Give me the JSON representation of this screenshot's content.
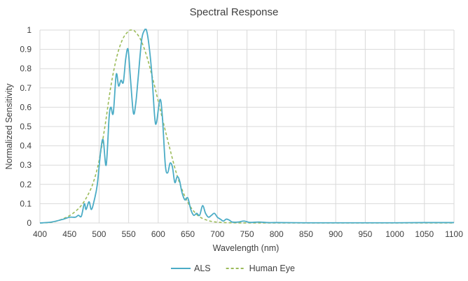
{
  "chart_data": {
    "type": "line",
    "title": "Spectral Response",
    "xlabel": "Wavelength (nm)",
    "ylabel": "Normalized Sensitivity",
    "xlim": [
      400,
      1100
    ],
    "ylim": [
      0,
      1
    ],
    "x_ticks": [
      400,
      450,
      500,
      550,
      600,
      650,
      700,
      750,
      800,
      850,
      900,
      950,
      1000,
      1050,
      1100
    ],
    "y_ticks": [
      0,
      0.1,
      0.2,
      0.3,
      0.4,
      0.5,
      0.6,
      0.7,
      0.8,
      0.9,
      1
    ],
    "grid": true,
    "legend_position": "bottom",
    "series": [
      {
        "name": "ALS",
        "color": "#4bacc6",
        "style": "solid",
        "points": [
          [
            400,
            0.0
          ],
          [
            420,
            0.005
          ],
          [
            440,
            0.02
          ],
          [
            450,
            0.03
          ],
          [
            460,
            0.03
          ],
          [
            465,
            0.04
          ],
          [
            470,
            0.035
          ],
          [
            475,
            0.1
          ],
          [
            478,
            0.07
          ],
          [
            483,
            0.11
          ],
          [
            487,
            0.07
          ],
          [
            492,
            0.12
          ],
          [
            497,
            0.2
          ],
          [
            503,
            0.38
          ],
          [
            507,
            0.43
          ],
          [
            512,
            0.3
          ],
          [
            517,
            0.55
          ],
          [
            520,
            0.6
          ],
          [
            524,
            0.57
          ],
          [
            529,
            0.77
          ],
          [
            533,
            0.71
          ],
          [
            537,
            0.74
          ],
          [
            541,
            0.73
          ],
          [
            545,
            0.85
          ],
          [
            549,
            0.9
          ],
          [
            553,
            0.75
          ],
          [
            558,
            0.57
          ],
          [
            562,
            0.62
          ],
          [
            566,
            0.75
          ],
          [
            572,
            0.95
          ],
          [
            577,
            1.0
          ],
          [
            580,
            1.0
          ],
          [
            584,
            0.93
          ],
          [
            589,
            0.78
          ],
          [
            594,
            0.55
          ],
          [
            597,
            0.52
          ],
          [
            603,
            0.64
          ],
          [
            607,
            0.55
          ],
          [
            612,
            0.3
          ],
          [
            616,
            0.26
          ],
          [
            620,
            0.31
          ],
          [
            624,
            0.29
          ],
          [
            628,
            0.21
          ],
          [
            632,
            0.24
          ],
          [
            636,
            0.22
          ],
          [
            640,
            0.16
          ],
          [
            645,
            0.12
          ],
          [
            650,
            0.13
          ],
          [
            655,
            0.07
          ],
          [
            660,
            0.04
          ],
          [
            665,
            0.05
          ],
          [
            670,
            0.04
          ],
          [
            675,
            0.09
          ],
          [
            680,
            0.05
          ],
          [
            685,
            0.03
          ],
          [
            690,
            0.04
          ],
          [
            695,
            0.05
          ],
          [
            700,
            0.03
          ],
          [
            705,
            0.02
          ],
          [
            710,
            0.01
          ],
          [
            715,
            0.02
          ],
          [
            720,
            0.015
          ],
          [
            725,
            0.005
          ],
          [
            735,
            0.005
          ],
          [
            745,
            0.01
          ],
          [
            755,
            0.003
          ],
          [
            770,
            0.005
          ],
          [
            785,
            0.002
          ],
          [
            800,
            0.002
          ],
          [
            850,
            0.001
          ],
          [
            900,
            0.001
          ],
          [
            950,
            0.001
          ],
          [
            1000,
            0.001
          ],
          [
            1050,
            0.002
          ],
          [
            1100,
            0.002
          ]
        ]
      },
      {
        "name": "Human Eye",
        "color": "#9bbb59",
        "style": "dashed",
        "points": [
          [
            400,
            0.0004
          ],
          [
            410,
            0.0012
          ],
          [
            420,
            0.004
          ],
          [
            430,
            0.0116
          ],
          [
            440,
            0.023
          ],
          [
            450,
            0.038
          ],
          [
            460,
            0.06
          ],
          [
            470,
            0.091
          ],
          [
            480,
            0.139
          ],
          [
            490,
            0.208
          ],
          [
            500,
            0.323
          ],
          [
            510,
            0.503
          ],
          [
            520,
            0.71
          ],
          [
            530,
            0.862
          ],
          [
            540,
            0.954
          ],
          [
            550,
            0.995
          ],
          [
            555,
            1.0
          ],
          [
            560,
            0.995
          ],
          [
            570,
            0.952
          ],
          [
            580,
            0.87
          ],
          [
            590,
            0.757
          ],
          [
            600,
            0.631
          ],
          [
            610,
            0.503
          ],
          [
            620,
            0.381
          ],
          [
            630,
            0.265
          ],
          [
            640,
            0.175
          ],
          [
            650,
            0.107
          ],
          [
            660,
            0.061
          ],
          [
            670,
            0.032
          ],
          [
            680,
            0.017
          ],
          [
            690,
            0.0082
          ],
          [
            700,
            0.0041
          ],
          [
            710,
            0.0021
          ],
          [
            720,
            0.00105
          ],
          [
            730,
            0.00052
          ],
          [
            740,
            0.00025
          ],
          [
            750,
            0.00012
          ],
          [
            800,
            0.0
          ],
          [
            1100,
            0.0
          ]
        ]
      }
    ]
  }
}
